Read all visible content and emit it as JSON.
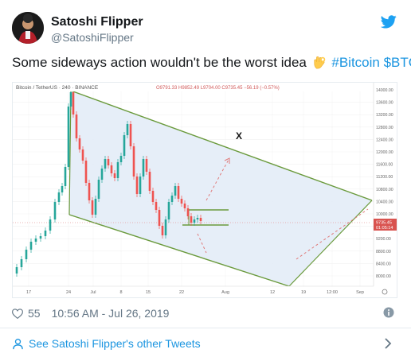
{
  "user": {
    "display_name": "Satoshi Flipper",
    "handle": "@SatoshiFlipper"
  },
  "tweet": {
    "text_before": "Some sideways action wouldn't be the worst idea",
    "emoji": "ok-hand-emoji",
    "hashtag": "#Bitcoin",
    "cashtag": "$BTC"
  },
  "chart_image": {
    "symbol_line": "Bitcoin / TetherUS · 240 · BINANCE",
    "ohlc": "O9791.33 H9852.49 L9704.00 C9735.45 −56.19 (−0.57%)",
    "marker": "X",
    "price_axis": [
      "14000.00",
      "13600.00",
      "13200.00",
      "12800.00",
      "12400.00",
      "12000.00",
      "11600.00",
      "11200.00",
      "10800.00",
      "10400.00",
      "10000.00",
      "9600.00",
      "9200.00",
      "8800.00",
      "8400.00",
      "8000.00"
    ],
    "price_badge_1": "9735.45",
    "price_badge_2": "01:05:14",
    "time_axis": [
      "17",
      "24",
      "Jul",
      "8",
      "15",
      "22",
      "Aug",
      "12",
      "19",
      "12:00",
      "Sep"
    ]
  },
  "meta": {
    "likes": "55",
    "timestamp": "10:56 AM - Jul 26, 2019"
  },
  "footer": {
    "more_tweets": "See Satoshi Flipper's other Tweets"
  },
  "colors": {
    "twitter_blue": "#1da1f2",
    "link_blue": "#1b95e0",
    "channel_green": "#6a9a3c",
    "channel_fill": "#e3ecf7"
  }
}
